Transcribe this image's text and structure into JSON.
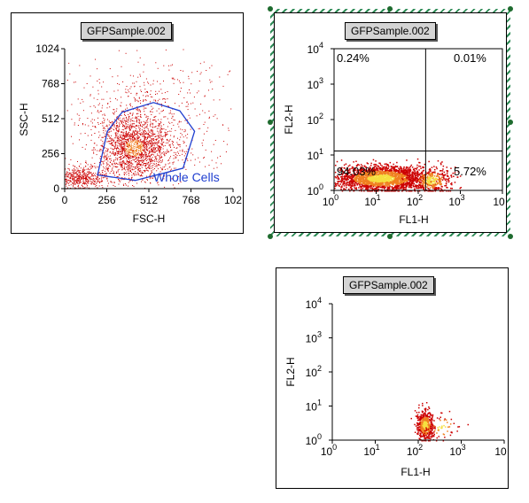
{
  "colors": {
    "gate": "#1f3fd0",
    "dot_red": "#cc0000",
    "dot_orange": "#f08020",
    "dot_yellow": "#f5e040",
    "selection": "#2e8b57"
  },
  "plot1": {
    "tab": "GFPSample.002",
    "chart_data": {
      "type": "scatter",
      "xlabel": "FSC-H",
      "ylabel": "SSC-H",
      "xlim": [
        0,
        1024
      ],
      "ylim": [
        0,
        1024
      ],
      "x_ticks": [
        "0",
        "256",
        "512",
        "768",
        "102"
      ],
      "y_ticks": [
        "0",
        "256",
        "512",
        "768",
        "1024"
      ],
      "gate": {
        "label": "Whole Cells",
        "polygon": [
          [
            200,
            100
          ],
          [
            260,
            420
          ],
          [
            350,
            560
          ],
          [
            540,
            630
          ],
          [
            700,
            570
          ],
          [
            790,
            420
          ],
          [
            720,
            150
          ],
          [
            430,
            60
          ]
        ]
      },
      "clusters": [
        {
          "center": [
            420,
            300
          ],
          "spread": [
            110,
            120
          ],
          "count": 1800
        },
        {
          "center": [
            90,
            80
          ],
          "spread": [
            80,
            40
          ],
          "count": 500
        },
        {
          "center": [
            500,
            500
          ],
          "spread": [
            250,
            220
          ],
          "count": 700
        }
      ]
    }
  },
  "plot2": {
    "tab": "GFPSample.002",
    "chart_data": {
      "type": "scatter",
      "scale": "log",
      "xlabel": "FL1-H",
      "ylabel": "FL2-H",
      "xlim": [
        1,
        10000
      ],
      "ylim": [
        1,
        10000
      ],
      "x_ticks": [
        {
          "base": "10",
          "exp": "0"
        },
        {
          "base": "10",
          "exp": "1"
        },
        {
          "base": "10",
          "exp": "2"
        },
        {
          "base": "10",
          "exp": "3"
        },
        {
          "base": "10",
          "exp": ""
        }
      ],
      "y_ticks": [
        {
          "base": "10",
          "exp": "0"
        },
        {
          "base": "10",
          "exp": "1"
        },
        {
          "base": "10",
          "exp": "2"
        },
        {
          "base": "10",
          "exp": "3"
        },
        {
          "base": "10",
          "exp": "4"
        }
      ],
      "quadrant_split": {
        "x": 150,
        "y": 13
      },
      "quadrants": {
        "ul": "0.24%",
        "ur": "0.01%",
        "ll": "94.03%",
        "lr": "5.72%"
      },
      "clusters": [
        {
          "center_log": [
            1.1,
            0.35
          ],
          "spread_log": [
            0.55,
            0.18
          ],
          "count": 2200
        },
        {
          "center_log": [
            2.3,
            0.3
          ],
          "spread_log": [
            0.25,
            0.18
          ],
          "count": 350
        }
      ]
    }
  },
  "plot3": {
    "tab": "GFPSample.002",
    "chart_data": {
      "type": "scatter",
      "scale": "log",
      "xlabel": "FL1-H",
      "ylabel": "FL2-H",
      "xlim": [
        1,
        10000
      ],
      "ylim": [
        1,
        10000
      ],
      "x_ticks": [
        {
          "base": "10",
          "exp": "0"
        },
        {
          "base": "10",
          "exp": "1"
        },
        {
          "base": "10",
          "exp": "2"
        },
        {
          "base": "10",
          "exp": "3"
        },
        {
          "base": "10",
          "exp": ""
        }
      ],
      "y_ticks": [
        {
          "base": "10",
          "exp": "0"
        },
        {
          "base": "10",
          "exp": "1"
        },
        {
          "base": "10",
          "exp": "2"
        },
        {
          "base": "10",
          "exp": "3"
        },
        {
          "base": "10",
          "exp": "4"
        }
      ],
      "clusters": [
        {
          "center_log": [
            2.15,
            0.45
          ],
          "spread_log": [
            0.1,
            0.22
          ],
          "count": 500
        },
        {
          "center_log": [
            2.55,
            0.4
          ],
          "spread_log": [
            0.2,
            0.2
          ],
          "count": 60
        }
      ]
    }
  }
}
